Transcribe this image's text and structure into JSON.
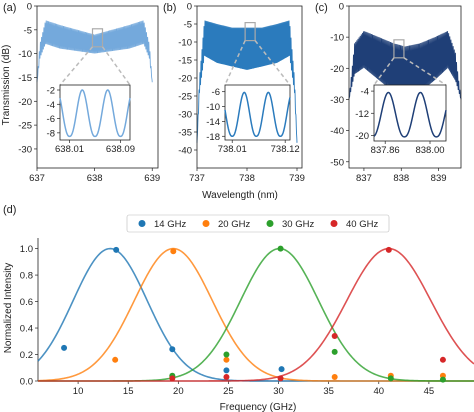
{
  "colors": {
    "panel_a": "#74a9dc",
    "panel_b": "#2b7bbd",
    "panel_c": "#1f3f77",
    "s14": "#1f77b4",
    "s20": "#ff7f0e",
    "s30": "#2ca02c",
    "s40": "#d62728"
  },
  "labels": {
    "a": "(a)",
    "b": "(b)",
    "c": "(c)",
    "d": "(d)"
  },
  "chart_data": [
    {
      "type": "line",
      "panel": "a",
      "ylabel": "Transmission (dB)",
      "xlim": [
        637,
        639.1
      ],
      "ylim": [
        -34,
        0
      ],
      "xticks": [
        "637",
        "638",
        "639"
      ],
      "yticks": [
        "0",
        "-5",
        "-10",
        "-15",
        "-20",
        "-25",
        "-30"
      ],
      "envelope": {
        "x": [
          637.0,
          637.05,
          637.15,
          637.4,
          637.7,
          638.0,
          638.3,
          638.6,
          638.85,
          638.95,
          639.0
        ],
        "y_top": [
          -16,
          -8,
          -3,
          -4,
          -5,
          -6,
          -5,
          -4,
          -3,
          -8,
          -16
        ],
        "y_bottom": [
          -16,
          -11,
          -8,
          -9,
          -9.5,
          -10,
          -9.5,
          -9,
          -8,
          -11,
          -16
        ]
      },
      "inset": {
        "xlim": [
          637.995,
          638.105
        ],
        "ylim": [
          -9,
          -1.3
        ],
        "xticks": [
          "638.01",
          "638.09"
        ],
        "yticks": [
          "-2",
          "-4",
          "-6",
          "-8"
        ],
        "peaks": [
          638.03,
          638.07
        ],
        "ymax": -2,
        "ymin": -8.5
      }
    },
    {
      "type": "line",
      "panel": "b",
      "xlabel": "Wavelength (nm)",
      "xlim": [
        737,
        739.1
      ],
      "ylim": [
        -45,
        0
      ],
      "xticks": [
        "737",
        "738",
        "739"
      ],
      "yticks": [
        "0",
        "-5",
        "-10",
        "-15",
        "-20",
        "-25",
        "-30",
        "-35",
        "-40"
      ],
      "envelope": {
        "x": [
          737.0,
          737.05,
          737.15,
          737.4,
          737.7,
          738.0,
          738.3,
          738.6,
          738.85,
          738.95,
          739.0
        ],
        "y_top": [
          -38,
          -20,
          -4,
          -5,
          -6,
          -6,
          -6,
          -5,
          -4,
          -20,
          -38
        ],
        "y_bottom": [
          -38,
          -24,
          -14,
          -16,
          -17,
          -18,
          -17,
          -16,
          -14,
          -24,
          -38
        ]
      },
      "inset": {
        "xlim": [
          737.995,
          738.13
        ],
        "ylim": [
          -19,
          -4.2
        ],
        "xticks": [
          "738.01",
          "738.12"
        ],
        "yticks": [
          "-6",
          "-10",
          "-14",
          "-18"
        ],
        "peaks": [
          738.035,
          738.085
        ],
        "ymax": -6.2,
        "ymin": -18
      }
    },
    {
      "type": "line",
      "panel": "c",
      "xlim": [
        836.6,
        839.6
      ],
      "ylim": [
        -52,
        0
      ],
      "xticks": [
        "837",
        "838",
        "839"
      ],
      "yticks": [
        "0",
        "-10",
        "-20",
        "-30",
        "-40",
        "-50"
      ],
      "envelope": {
        "x": [
          836.6,
          836.75,
          837.0,
          837.4,
          837.8,
          838.1,
          838.5,
          838.9,
          839.25,
          839.45,
          839.6
        ],
        "y_top": [
          -30,
          -12,
          -8,
          -10,
          -12,
          -13,
          -12,
          -10,
          -8,
          -15,
          -30
        ],
        "y_bottom": [
          -30,
          -22,
          -20,
          -24,
          -28,
          -29,
          -28,
          -24,
          -20,
          -24,
          -30
        ]
      },
      "inset": {
        "xlim": [
          837.825,
          838.05
        ],
        "ylim": [
          -22,
          -1.8
        ],
        "xticks": [
          "837.86",
          "838.00"
        ],
        "yticks": [
          "-4",
          "-12",
          "-20"
        ],
        "peaks": [
          837.87,
          837.97
        ],
        "ymax": -4.5,
        "ymin": -20.5
      }
    },
    {
      "type": "line",
      "panel": "d",
      "xlabel": "Frequency (GHz)",
      "ylabel": "Normalized Intensity",
      "xlim": [
        6,
        49.5
      ],
      "ylim": [
        0,
        1.08
      ],
      "xticks": [
        "10",
        "15",
        "20",
        "25",
        "30",
        "35",
        "40",
        "45"
      ],
      "yticks": [
        "0.0",
        "0.2",
        "0.4",
        "0.6",
        "0.8",
        "1.0"
      ],
      "legend_position": "top",
      "series": [
        {
          "name": "14 GHz",
          "color": "#1f77b4",
          "center": 13.2,
          "sigma": 3.7,
          "points": [
            [
              8.6,
              0.25
            ],
            [
              13.8,
              0.99
            ],
            [
              19.4,
              0.24
            ],
            [
              24.8,
              0.08
            ],
            [
              30.3,
              0.09
            ]
          ]
        },
        {
          "name": "20 GHz",
          "color": "#ff7f0e",
          "center": 19.5,
          "sigma": 3.9,
          "points": [
            [
              13.7,
              0.16
            ],
            [
              19.5,
              0.98
            ],
            [
              24.8,
              0.16
            ],
            [
              19.4,
              0.03
            ],
            [
              35.6,
              0.03
            ],
            [
              41.2,
              0.04
            ],
            [
              46.4,
              0.04
            ]
          ]
        },
        {
          "name": "30 GHz",
          "color": "#2ca02c",
          "center": 30.1,
          "sigma": 3.9,
          "points": [
            [
              19.4,
              0.04
            ],
            [
              24.8,
              0.2
            ],
            [
              30.2,
              1.0
            ],
            [
              35.6,
              0.22
            ],
            [
              41.2,
              0.02
            ],
            [
              46.4,
              0.01
            ]
          ]
        },
        {
          "name": "40 GHz",
          "color": "#d62728",
          "center": 41.0,
          "sigma": 4.2,
          "points": [
            [
              19.4,
              0.02
            ],
            [
              24.8,
              0.03
            ],
            [
              30.2,
              0.02
            ],
            [
              35.6,
              0.34
            ],
            [
              41.0,
              0.99
            ],
            [
              46.4,
              0.16
            ]
          ]
        }
      ]
    }
  ]
}
